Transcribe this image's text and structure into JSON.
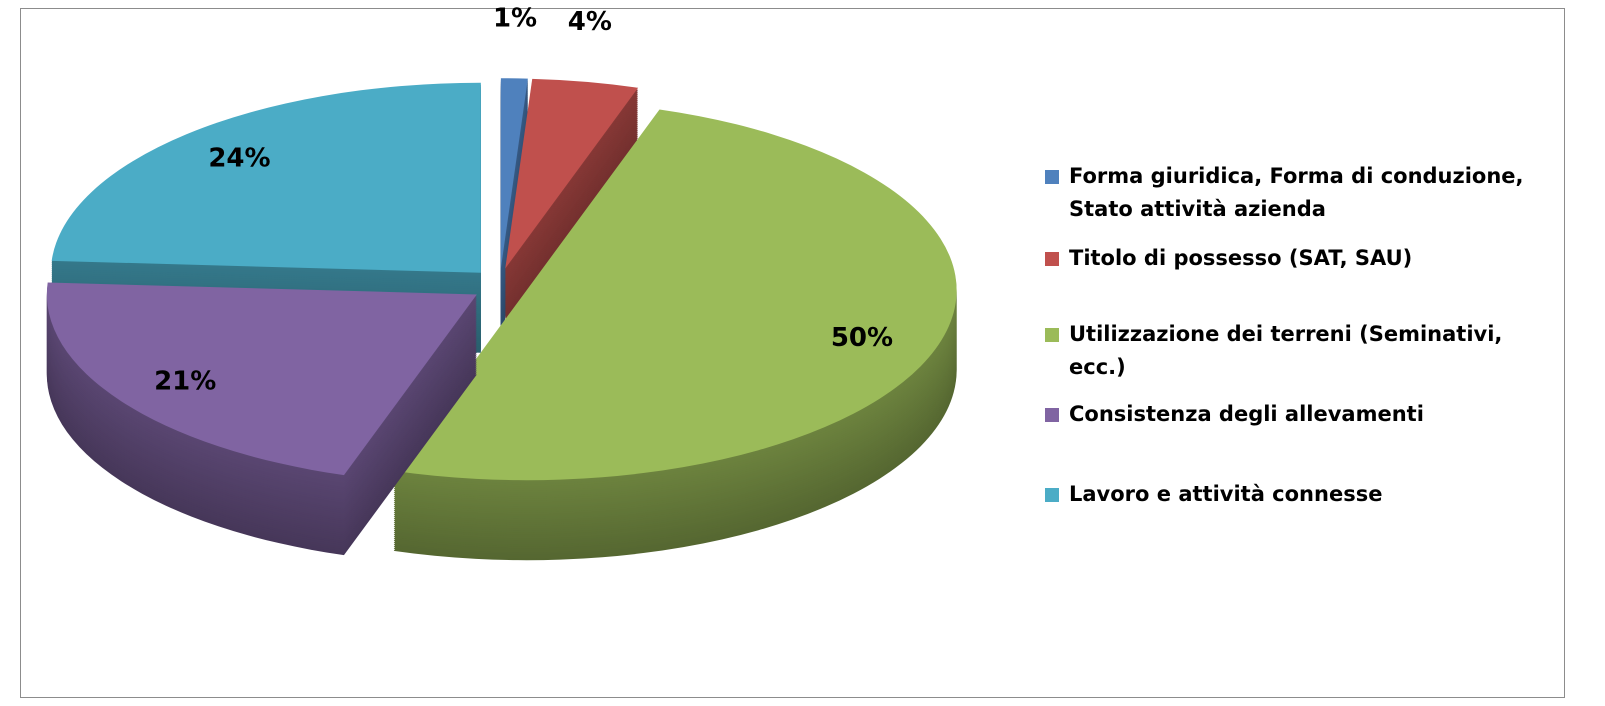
{
  "chart_data": {
    "type": "pie3d",
    "categories": [
      "Forma giuridica, Forma di conduzione, Stato attività azienda",
      "Titolo di possesso (SAT, SAU)",
      "Utilizzazione dei terreni (Seminativi, ecc.)",
      "Consistenza degli allevamenti",
      "Lavoro e attività connesse"
    ],
    "values": [
      1,
      4,
      50,
      21,
      24
    ],
    "value_labels": [
      "1%",
      "4%",
      "50%",
      "21%",
      "24%"
    ],
    "colors": [
      "#4f81bd",
      "#c0504d",
      "#9bbb59",
      "#8064a2",
      "#4bacc6"
    ],
    "legend": "right"
  }
}
